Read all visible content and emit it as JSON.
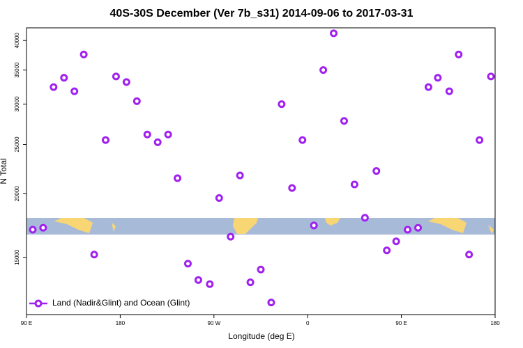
{
  "chart_data": {
    "type": "scatter",
    "title": "40S-30S December (Ver 7b_s31)   2014-09-06 to 2017-03-31",
    "x_label": "Longitude (deg E)",
    "y_label": "N Total",
    "x": [
      96,
      106,
      116,
      126,
      136,
      145,
      155,
      166,
      176,
      186,
      196,
      206,
      216,
      226,
      235,
      245,
      255,
      266,
      275,
      286,
      295,
      305,
      315,
      325,
      335,
      345,
      355,
      366,
      375,
      385,
      395,
      405,
      415,
      426,
      436,
      445,
      456,
      466,
      476,
      485,
      496,
      505,
      515,
      525,
      536
    ],
    "series": [
      {
        "name": "Land (Nadir&Glint) and Ocean (Glint)",
        "color": "#a020f0",
        "values": [
          17000,
          17150,
          32400,
          33800,
          31800,
          37550,
          15190,
          25500,
          34000,
          33150,
          30400,
          26150,
          25250,
          26150,
          21460,
          14580,
          13540,
          13290,
          19620,
          16470,
          21730,
          13400,
          14200,
          12230,
          30000,
          20530,
          25500,
          17330,
          35000,
          41330,
          27800,
          20860,
          17940,
          22170,
          15480,
          16130,
          17000,
          17150,
          32400,
          33800,
          31800,
          37550,
          15190,
          25500,
          34000
        ]
      }
    ],
    "xlim": [
      90,
      540
    ],
    "xticks": [
      {
        "value": 90,
        "label": "90 E"
      },
      {
        "value": 180,
        "label": "180"
      },
      {
        "value": 270,
        "label": "90 W"
      },
      {
        "value": 360,
        "label": "0"
      },
      {
        "value": 450,
        "label": "90 E"
      },
      {
        "value": 540,
        "label": "180"
      }
    ],
    "ylim": [
      11580,
      42360
    ],
    "yticks": [
      15000,
      20000,
      25000,
      30000,
      35000,
      40000
    ],
    "log_y": true,
    "legend": "lower left"
  }
}
